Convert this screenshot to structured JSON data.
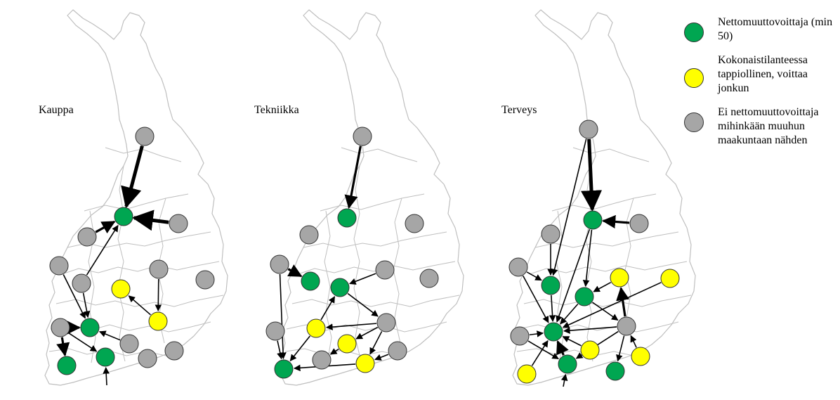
{
  "colors": {
    "green": "#00a651",
    "yellow": "#ffff00",
    "gray": "#a6a6a6",
    "outline": "#333333",
    "border": "#bfbfbf",
    "arrow": "#000000"
  },
  "panels": [
    {
      "title": "Kauppa",
      "nodes": [
        {
          "id": "lappi",
          "status": "gray"
        },
        {
          "id": "pohjois-pohjanmaa",
          "status": "green"
        },
        {
          "id": "kainuu",
          "status": "gray"
        },
        {
          "id": "keski-pohjanmaa",
          "status": "gray"
        },
        {
          "id": "pohjanmaa",
          "status": "gray"
        },
        {
          "id": "etela-pohjanmaa",
          "status": "gray"
        },
        {
          "id": "keski-suomi",
          "status": "yellow"
        },
        {
          "id": "pohjois-savo",
          "status": "gray"
        },
        {
          "id": "pohjois-karjala",
          "status": "gray"
        },
        {
          "id": "etela-savo",
          "status": "yellow"
        },
        {
          "id": "satakunta",
          "status": "gray"
        },
        {
          "id": "pirkanmaa",
          "status": "green"
        },
        {
          "id": "paijat-hame",
          "status": "gray"
        },
        {
          "id": "kanta-hame",
          "status": "green"
        },
        {
          "id": "varsinais-suomi",
          "status": "green"
        },
        {
          "id": "kymenlaakso",
          "status": "gray"
        },
        {
          "id": "etela-karjala",
          "status": "gray"
        }
      ],
      "flows": [
        {
          "from": "lappi",
          "to": "pohjois-pohjanmaa",
          "weight": 3
        },
        {
          "from": "kainuu",
          "to": "pohjois-pohjanmaa",
          "weight": 3
        },
        {
          "from": "keski-pohjanmaa",
          "to": "pohjois-pohjanmaa",
          "weight": 2
        },
        {
          "from": "etela-pohjanmaa",
          "to": "pohjois-pohjanmaa",
          "weight": 1
        },
        {
          "from": "pohjanmaa",
          "to": "pirkanmaa",
          "weight": 1
        },
        {
          "from": "etela-pohjanmaa",
          "to": "pirkanmaa",
          "weight": 1
        },
        {
          "from": "satakunta",
          "to": "pirkanmaa",
          "weight": 2
        },
        {
          "from": "paijat-hame",
          "to": "pirkanmaa",
          "weight": 1
        },
        {
          "from": "satakunta",
          "to": "varsinais-suomi",
          "weight": 2
        },
        {
          "from": "satakunta",
          "to": "kanta-hame",
          "weight": 1
        },
        {
          "from": "etela-savo",
          "to": "keski-suomi",
          "weight": 1
        },
        {
          "from": "pohjois-savo",
          "to": "etela-savo",
          "weight": 1
        },
        {
          "from": "south-edge",
          "to": "kanta-hame",
          "weight": 1
        }
      ]
    },
    {
      "title": "Tekniikka",
      "nodes": [
        {
          "id": "lappi",
          "status": "gray"
        },
        {
          "id": "pohjois-pohjanmaa",
          "status": "green"
        },
        {
          "id": "kainuu",
          "status": "gray"
        },
        {
          "id": "keski-pohjanmaa",
          "status": "gray"
        },
        {
          "id": "pohjanmaa",
          "status": "gray"
        },
        {
          "id": "etela-pohjanmaa",
          "status": "green"
        },
        {
          "id": "keski-suomi",
          "status": "green"
        },
        {
          "id": "pohjois-savo",
          "status": "gray"
        },
        {
          "id": "pohjois-karjala",
          "status": "gray"
        },
        {
          "id": "satakunta",
          "status": "gray"
        },
        {
          "id": "pirkanmaa",
          "status": "yellow"
        },
        {
          "id": "etela-savo",
          "status": "gray"
        },
        {
          "id": "paijat-hame",
          "status": "yellow"
        },
        {
          "id": "etela-karjala",
          "status": "gray"
        },
        {
          "id": "kanta-hame",
          "status": "gray"
        },
        {
          "id": "kymenlaakso",
          "status": "yellow"
        },
        {
          "id": "varsinais-suomi",
          "status": "green"
        }
      ],
      "flows": [
        {
          "from": "lappi",
          "to": "pohjois-pohjanmaa",
          "weight": 2
        },
        {
          "from": "pohjanmaa",
          "to": "etela-pohjanmaa",
          "weight": 2
        },
        {
          "from": "pohjois-savo",
          "to": "keski-suomi",
          "weight": 1
        },
        {
          "from": "pohjanmaa",
          "to": "varsinais-suomi",
          "weight": 1
        },
        {
          "from": "satakunta",
          "to": "varsinais-suomi",
          "weight": 1
        },
        {
          "from": "pirkanmaa",
          "to": "varsinais-suomi",
          "weight": 1
        },
        {
          "from": "etela-savo",
          "to": "pirkanmaa",
          "weight": 1
        },
        {
          "from": "keski-suomi",
          "to": "etela-savo",
          "weight": 1
        },
        {
          "from": "etela-savo",
          "to": "paijat-hame",
          "weight": 1
        },
        {
          "from": "etela-savo",
          "to": "kymenlaakso",
          "weight": 1
        },
        {
          "from": "paijat-hame",
          "to": "kanta-hame",
          "weight": 1
        },
        {
          "from": "kymenlaakso",
          "to": "varsinais-suomi",
          "weight": 1
        },
        {
          "from": "etela-karjala",
          "to": "kymenlaakso",
          "weight": 1
        },
        {
          "from": "pirkanmaa",
          "to": "keski-suomi",
          "weight": 1
        }
      ]
    },
    {
      "title": "Terveys",
      "nodes": [
        {
          "id": "lappi",
          "status": "gray"
        },
        {
          "id": "pohjois-pohjanmaa",
          "status": "green"
        },
        {
          "id": "kainuu",
          "status": "gray"
        },
        {
          "id": "keski-pohjanmaa",
          "status": "gray"
        },
        {
          "id": "pohjanmaa",
          "status": "gray"
        },
        {
          "id": "etela-pohjanmaa",
          "status": "green"
        },
        {
          "id": "keski-suomi",
          "status": "green"
        },
        {
          "id": "pohjois-savo",
          "status": "yellow"
        },
        {
          "id": "pohjois-karjala",
          "status": "yellow"
        },
        {
          "id": "satakunta",
          "status": "gray"
        },
        {
          "id": "pirkanmaa",
          "status": "green"
        },
        {
          "id": "etela-savo",
          "status": "gray"
        },
        {
          "id": "paijat-hame",
          "status": "yellow"
        },
        {
          "id": "etela-karjala",
          "status": "yellow"
        },
        {
          "id": "varsinais-suomi",
          "status": "yellow"
        },
        {
          "id": "kanta-hame",
          "status": "green"
        },
        {
          "id": "kymenlaakso",
          "status": "green"
        }
      ],
      "flows": [
        {
          "from": "lappi",
          "to": "pohjois-pohjanmaa",
          "weight": 3
        },
        {
          "from": "lappi",
          "to": "etela-pohjanmaa",
          "weight": 1
        },
        {
          "from": "kainuu",
          "to": "pohjois-pohjanmaa",
          "weight": 2
        },
        {
          "from": "pohjois-pohjanmaa",
          "to": "pirkanmaa",
          "weight": 1
        },
        {
          "from": "pohjois-pohjanmaa",
          "to": "keski-suomi",
          "weight": 1
        },
        {
          "from": "keski-pohjanmaa",
          "to": "etela-pohjanmaa",
          "weight": 1
        },
        {
          "from": "pohjanmaa",
          "to": "etela-pohjanmaa",
          "weight": 1
        },
        {
          "from": "pohjois-savo",
          "to": "keski-suomi",
          "weight": 1
        },
        {
          "from": "etela-savo",
          "to": "pohjois-savo",
          "weight": 2
        },
        {
          "from": "pohjois-karjala",
          "to": "pirkanmaa",
          "weight": 1
        },
        {
          "from": "keski-suomi",
          "to": "pirkanmaa",
          "weight": 1
        },
        {
          "from": "etela-pohjanmaa",
          "to": "pirkanmaa",
          "weight": 1
        },
        {
          "from": "satakunta",
          "to": "pirkanmaa",
          "weight": 1
        },
        {
          "from": "etela-savo",
          "to": "pirkanmaa",
          "weight": 1
        },
        {
          "from": "satakunta",
          "to": "kanta-hame",
          "weight": 1
        },
        {
          "from": "varsinais-suomi",
          "to": "pirkanmaa",
          "weight": 1
        },
        {
          "from": "kanta-hame",
          "to": "pirkanmaa",
          "weight": 2
        },
        {
          "from": "etela-savo",
          "to": "kanta-hame",
          "weight": 1
        },
        {
          "from": "paijat-hame",
          "to": "pirkanmaa",
          "weight": 1
        },
        {
          "from": "etela-karjala",
          "to": "etela-savo",
          "weight": 1
        },
        {
          "from": "etela-savo",
          "to": "kymenlaakso",
          "weight": 1
        },
        {
          "from": "pohjanmaa",
          "to": "pirkanmaa",
          "weight": 1
        },
        {
          "from": "keski-suomi",
          "to": "etela-savo",
          "weight": 1
        },
        {
          "from": "south-edge",
          "to": "kanta-hame",
          "weight": 1
        }
      ]
    }
  ],
  "legend": [
    {
      "status": "green",
      "label": "Nettomuuttovoittaja (min 50)"
    },
    {
      "status": "yellow",
      "label": "Kokonaistilanteessa tappiollinen, voittaa jonkun"
    },
    {
      "status": "gray",
      "label": "Ei nettomuuttovoittaja mihinkään muuhun maakuntaan nähden"
    }
  ]
}
